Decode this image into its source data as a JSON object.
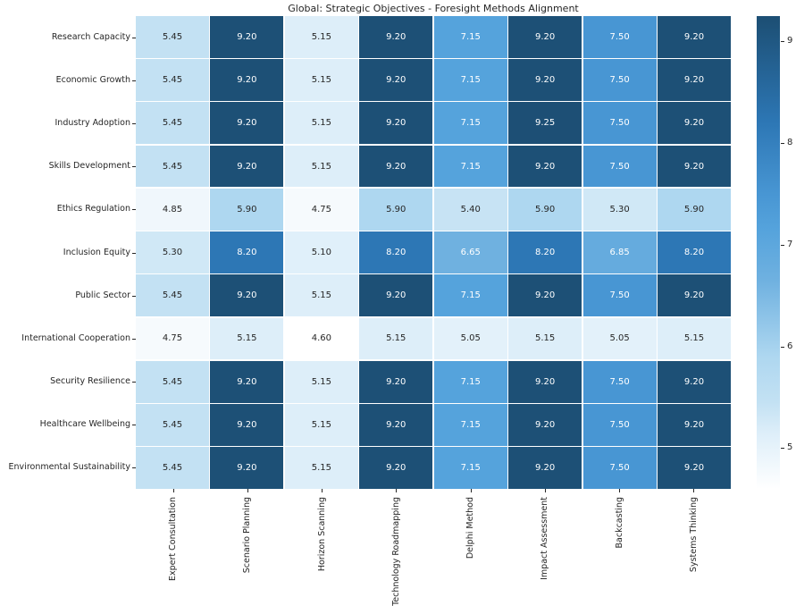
{
  "title": "Global: Strategic Objectives - Foresight Methods Alignment",
  "chart_data": {
    "type": "heatmap",
    "title": "Global: Strategic Objectives - Foresight Methods Alignment",
    "rows": [
      "Research Capacity",
      "Economic Growth",
      "Industry Adoption",
      "Skills Development",
      "Ethics Regulation",
      "Inclusion Equity",
      "Public Sector",
      "International Cooperation",
      "Security Resilience",
      "Healthcare Wellbeing",
      "Environmental Sustainability"
    ],
    "columns": [
      "Expert Consultation",
      "Scenario Planning",
      "Horizon Scanning",
      "Technology Roadmapping",
      "Delphi Method",
      "Impact Assessment",
      "Backcasting",
      "Systems Thinking"
    ],
    "values": [
      [
        5.45,
        9.2,
        5.15,
        9.2,
        7.15,
        9.2,
        7.5,
        9.2
      ],
      [
        5.45,
        9.2,
        5.15,
        9.2,
        7.15,
        9.2,
        7.5,
        9.2
      ],
      [
        5.45,
        9.2,
        5.15,
        9.2,
        7.15,
        9.25,
        7.5,
        9.2
      ],
      [
        5.45,
        9.2,
        5.15,
        9.2,
        7.15,
        9.2,
        7.5,
        9.2
      ],
      [
        4.85,
        5.9,
        4.75,
        5.9,
        5.4,
        5.9,
        5.3,
        5.9
      ],
      [
        5.3,
        8.2,
        5.1,
        8.2,
        6.65,
        8.2,
        6.85,
        8.2
      ],
      [
        5.45,
        9.2,
        5.15,
        9.2,
        7.15,
        9.2,
        7.5,
        9.2
      ],
      [
        4.75,
        5.15,
        4.6,
        5.15,
        5.05,
        5.15,
        5.05,
        5.15
      ],
      [
        5.45,
        9.2,
        5.15,
        9.2,
        7.15,
        9.2,
        7.5,
        9.2
      ],
      [
        5.45,
        9.2,
        5.15,
        9.2,
        7.15,
        9.2,
        7.5,
        9.2
      ],
      [
        5.45,
        9.2,
        5.15,
        9.2,
        7.15,
        9.2,
        7.5,
        9.2
      ]
    ],
    "value_decimals": 2,
    "vmin": 4.6,
    "vmax": 9.25,
    "colorbar_ticks": [
      9,
      8,
      7,
      6,
      5
    ],
    "colormap_anchors": [
      {
        "v": 4.6,
        "c": "#ffffff"
      },
      {
        "v": 5.15,
        "c": "#ddeef9"
      },
      {
        "v": 5.45,
        "c": "#c3e1f3"
      },
      {
        "v": 5.9,
        "c": "#aed7f0"
      },
      {
        "v": 6.65,
        "c": "#6fb1e0"
      },
      {
        "v": 7.15,
        "c": "#55a3dc"
      },
      {
        "v": 7.5,
        "c": "#4896d3"
      },
      {
        "v": 8.2,
        "c": "#2d77b5"
      },
      {
        "v": 9.2,
        "c": "#1d5076"
      },
      {
        "v": 9.25,
        "c": "#1d4f75"
      }
    ],
    "white_text_threshold": 6.3,
    "annotation_colors": {
      "on_light": "#262626",
      "on_dark": "#ffffff"
    },
    "grid_line_color": "#ffffff",
    "legend_position": "right"
  }
}
